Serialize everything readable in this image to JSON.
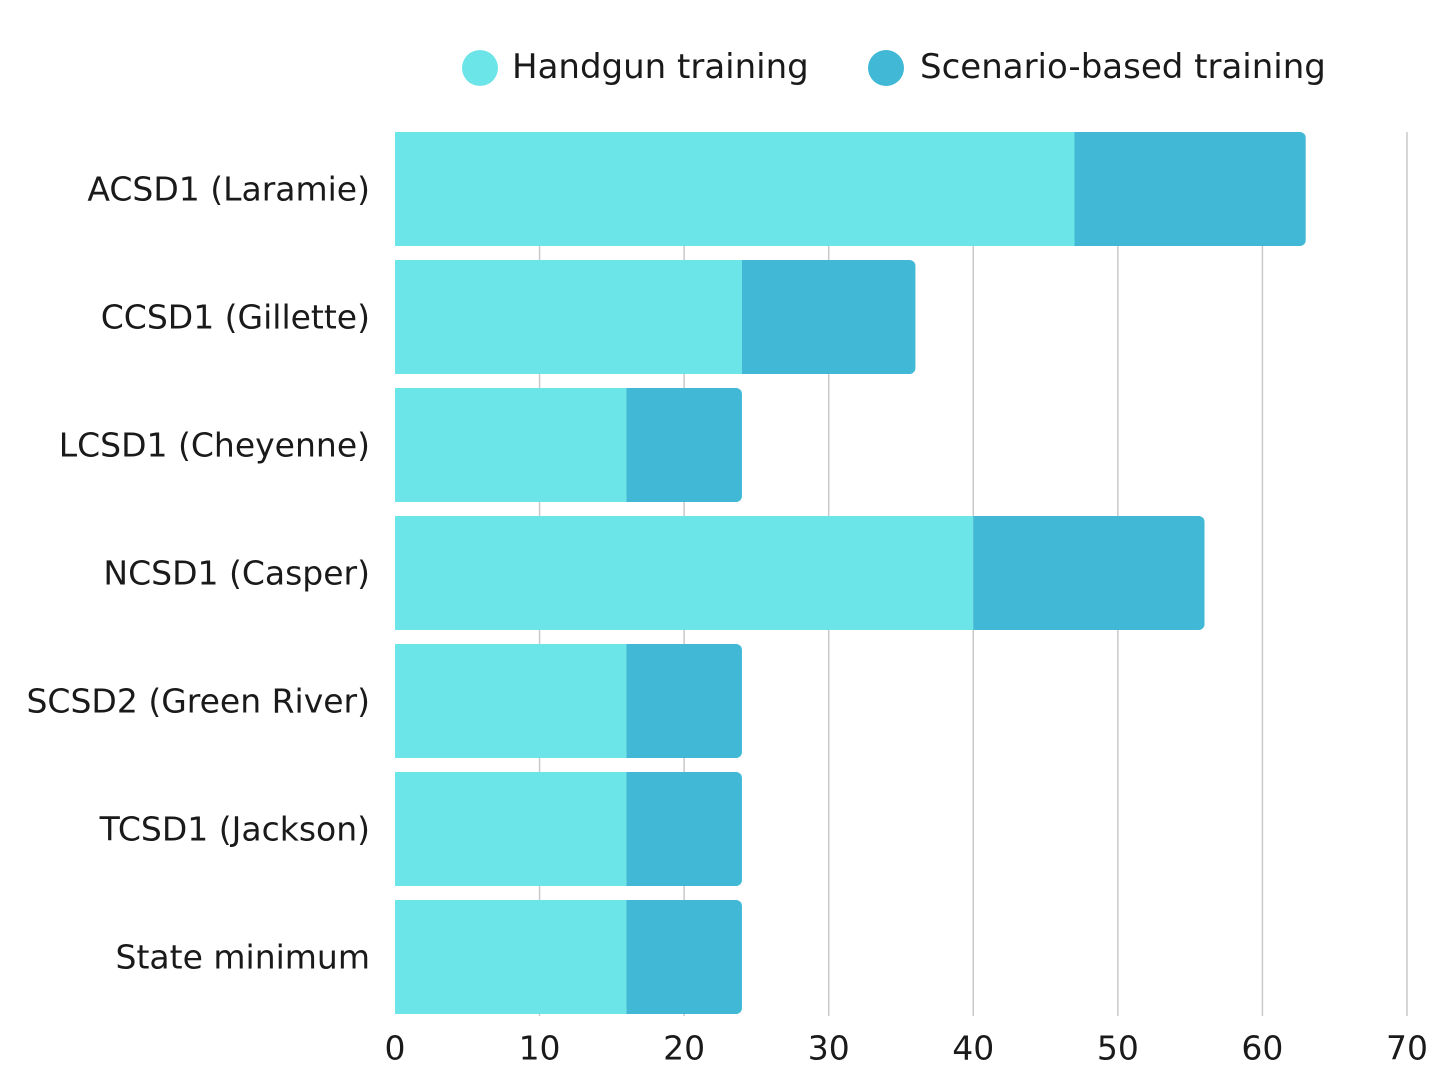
{
  "chart_data": {
    "type": "bar",
    "orientation": "horizontal",
    "stacked": true,
    "title": "",
    "xlabel": "",
    "ylabel": "",
    "categories": [
      "ACSD1 (Laramie)",
      "CCSD1 (Gillette)",
      "LCSD1 (Cheyenne)",
      "NCSD1 (Casper)",
      "SCSD2 (Green River)",
      "TCSD1 (Jackson)",
      "State minimum"
    ],
    "series": [
      {
        "name": "Handgun training",
        "color": "#6ce5e8",
        "values": [
          47,
          24,
          16,
          40,
          16,
          16,
          16
        ]
      },
      {
        "name": "Scenario-based training",
        "color": "#41b8d5",
        "values": [
          16,
          12,
          8,
          16,
          8,
          8,
          8
        ]
      }
    ],
    "xlim": [
      0,
      70
    ],
    "xticks": [
      0,
      10,
      20,
      30,
      40,
      50,
      60,
      70
    ],
    "grid": "vertical",
    "legend": "top"
  }
}
